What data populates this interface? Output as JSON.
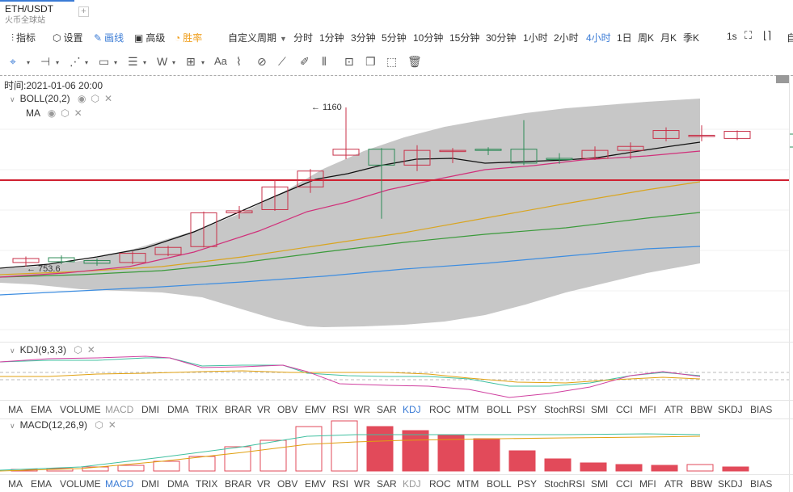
{
  "tab": {
    "title": "ETH/USDT",
    "subtitle": "火币全球站",
    "add_label": "+"
  },
  "toolbar": {
    "indicators": "指标",
    "settings": "设置",
    "draw": "画线",
    "advanced": "高级",
    "winrate": "胜率",
    "custom_period": "自定义周期",
    "periods": [
      "分时",
      "1分钟",
      "3分钟",
      "5分钟",
      "10分钟",
      "15分钟",
      "30分钟",
      "1小时",
      "2小时",
      "4小时",
      "1日",
      "周K",
      "月K",
      "季K"
    ],
    "active_period": "4小时",
    "refresh": "1s",
    "right_cut": "自"
  },
  "draw_tools": [
    "crosshair-icon",
    "horizontal-line-icon",
    "trend-line-icon",
    "rectangle-icon",
    "parallel-lines-icon",
    "wave-icon",
    "grid-icon",
    "text-icon",
    "fibonacci-icon",
    "magnet-icon",
    "ruler-icon",
    "pen-icon",
    "measure-icon",
    "lock-icon",
    "copy-icon",
    "screenshot-icon",
    "trash-icon"
  ],
  "time_label": "时间:2021-01-06 20:00",
  "main": {
    "boll_label": "BOLL(20,2)",
    "ma_label": "MA",
    "high_label": "← 1160",
    "low_label": "← 753.6"
  },
  "kdj": {
    "label": "KDJ(9,3,3)"
  },
  "indicator_tabs": [
    "MA",
    "EMA",
    "VOLUME",
    "MACD",
    "DMI",
    "DMA",
    "TRIX",
    "BRAR",
    "VR",
    "OBV",
    "EMV",
    "RSI",
    "WR",
    "SAR",
    "KDJ",
    "ROC",
    "MTM",
    "BOLL",
    "PSY",
    "StochRSI",
    "SMI",
    "CCI",
    "MFI",
    "ATR",
    "BBW",
    "SKDJ",
    "BIAS"
  ],
  "tabs_row1_active": "KDJ",
  "tabs_row1_dim": "MACD",
  "tabs_row2_active": "MACD",
  "tabs_row2_dim": "KDJ",
  "macd": {
    "label": "MACD(12,26,9)"
  },
  "colors": {
    "accent": "#3a7bd5",
    "up": "#c8324a",
    "down": "#2e8b57",
    "boll_band": "#c4c4c4",
    "ma_black": "#111111",
    "ma_pink": "#d0307a",
    "ma_gold": "#d9a520",
    "ma_green": "#3a9a3a",
    "ma_blue": "#3d8de0",
    "ref_line": "#d02030",
    "macd_bar": "#e24a5a"
  },
  "candles": [
    {
      "o": 770,
      "c": 780,
      "h": 785,
      "l": 760
    },
    {
      "o": 782,
      "c": 772,
      "h": 788,
      "l": 766
    },
    {
      "o": 775,
      "c": 768,
      "h": 780,
      "l": 762
    },
    {
      "o": 770,
      "c": 793,
      "h": 798,
      "l": 766
    },
    {
      "o": 790,
      "c": 808,
      "h": 812,
      "l": 786
    },
    {
      "o": 810,
      "c": 895,
      "h": 898,
      "l": 808
    },
    {
      "o": 895,
      "c": 900,
      "h": 912,
      "l": 880
    },
    {
      "o": 903,
      "c": 960,
      "h": 978,
      "l": 900
    },
    {
      "o": 960,
      "c": 1000,
      "h": 1005,
      "l": 945
    },
    {
      "o": 1040,
      "c": 1055,
      "h": 1160,
      "l": 1030
    },
    {
      "o": 1055,
      "c": 1015,
      "h": 1058,
      "l": 880
    },
    {
      "o": 1015,
      "c": 1052,
      "h": 1065,
      "l": 1000
    },
    {
      "o": 1050,
      "c": 1052,
      "h": 1058,
      "l": 1020
    },
    {
      "o": 1055,
      "c": 1052,
      "h": 1060,
      "l": 1040
    },
    {
      "o": 1055,
      "c": 1020,
      "h": 1128,
      "l": 1015
    },
    {
      "o": 1032,
      "c": 1030,
      "h": 1045,
      "l": 1018
    },
    {
      "o": 1032,
      "c": 1052,
      "h": 1062,
      "l": 1028
    },
    {
      "o": 1052,
      "c": 1062,
      "h": 1072,
      "l": 1030
    },
    {
      "o": 1082,
      "c": 1102,
      "h": 1110,
      "l": 1075
    },
    {
      "o": 1088,
      "c": 1090,
      "h": 1115,
      "l": 1075
    },
    {
      "o": 1082,
      "c": 1100,
      "h": 1102,
      "l": 1078
    }
  ],
  "macd_bars": [
    2,
    3,
    5,
    7,
    12,
    18,
    30,
    38,
    55,
    62,
    55,
    50,
    45,
    40,
    25,
    15,
    10,
    8,
    7,
    8,
    5
  ],
  "macd_bars_filled": [
    false,
    false,
    false,
    false,
    false,
    false,
    false,
    false,
    false,
    false,
    true,
    true,
    true,
    true,
    true,
    true,
    true,
    true,
    true,
    false,
    true
  ]
}
